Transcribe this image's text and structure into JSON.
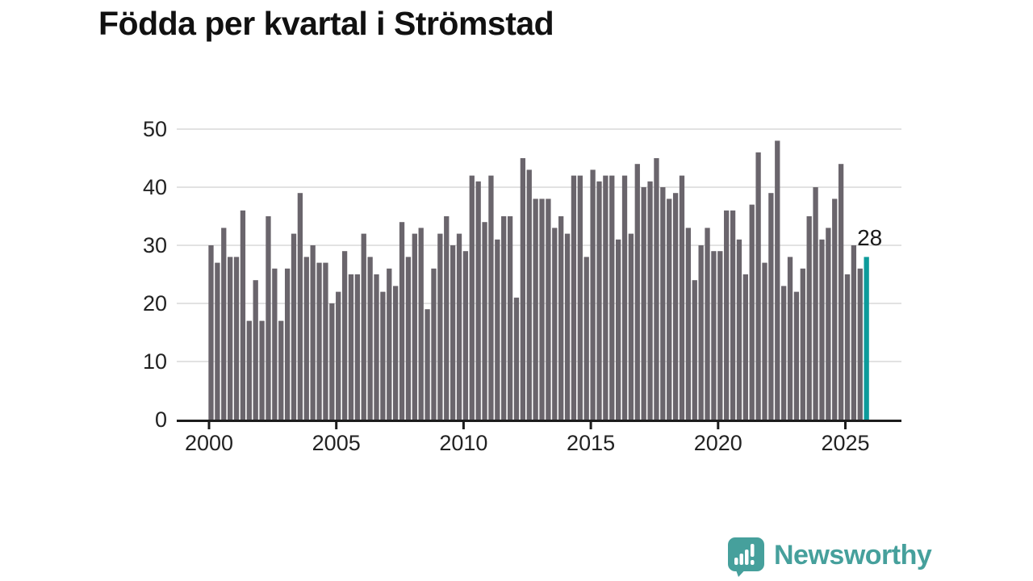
{
  "chart_data": {
    "type": "bar",
    "title": "Födda per kvartal i Strömstad",
    "frequency": "quarterly",
    "x_start": "2000-Q1",
    "x_end": "2025-Q4",
    "values_by_year": [
      {
        "year": 2000,
        "q": [
          30,
          27,
          33,
          28
        ]
      },
      {
        "year": 2001,
        "q": [
          28,
          36,
          17,
          24
        ]
      },
      {
        "year": 2002,
        "q": [
          17,
          35,
          26,
          17
        ]
      },
      {
        "year": 2003,
        "q": [
          26,
          32,
          39,
          28
        ]
      },
      {
        "year": 2004,
        "q": [
          30,
          27,
          27,
          20
        ]
      },
      {
        "year": 2005,
        "q": [
          22,
          29,
          25,
          25
        ]
      },
      {
        "year": 2006,
        "q": [
          32,
          28,
          25,
          22
        ]
      },
      {
        "year": 2007,
        "q": [
          26,
          23,
          34,
          28
        ]
      },
      {
        "year": 2008,
        "q": [
          32,
          33,
          19,
          26
        ]
      },
      {
        "year": 2009,
        "q": [
          32,
          35,
          30,
          32
        ]
      },
      {
        "year": 2010,
        "q": [
          29,
          42,
          41,
          34
        ]
      },
      {
        "year": 2011,
        "q": [
          42,
          31,
          35,
          35
        ]
      },
      {
        "year": 2012,
        "q": [
          21,
          45,
          43,
          38
        ]
      },
      {
        "year": 2013,
        "q": [
          38,
          38,
          33,
          35
        ]
      },
      {
        "year": 2014,
        "q": [
          32,
          42,
          42,
          28
        ]
      },
      {
        "year": 2015,
        "q": [
          43,
          41,
          42,
          42
        ]
      },
      {
        "year": 2016,
        "q": [
          31,
          42,
          32,
          44
        ]
      },
      {
        "year": 2017,
        "q": [
          40,
          41,
          45,
          40
        ]
      },
      {
        "year": 2018,
        "q": [
          38,
          39,
          42,
          33
        ]
      },
      {
        "year": 2019,
        "q": [
          24,
          30,
          33,
          29
        ]
      },
      {
        "year": 2020,
        "q": [
          29,
          36,
          36,
          31
        ]
      },
      {
        "year": 2021,
        "q": [
          25,
          37,
          46,
          27
        ]
      },
      {
        "year": 2022,
        "q": [
          39,
          48,
          23,
          28
        ]
      },
      {
        "year": 2023,
        "q": [
          22,
          26,
          35,
          40
        ]
      },
      {
        "year": 2024,
        "q": [
          31,
          33,
          38,
          44
        ]
      },
      {
        "year": 2025,
        "q": [
          25,
          30,
          26,
          28
        ]
      }
    ],
    "highlight_last": {
      "quarter": "2025-Q4",
      "value": 28,
      "label": "28"
    },
    "ylim": [
      0,
      50
    ],
    "yticks": [
      0,
      10,
      20,
      30,
      40,
      50
    ],
    "xticks": [
      2000,
      2005,
      2010,
      2015,
      2020,
      2025
    ],
    "grid": "horizontal",
    "legend": "none",
    "colors": {
      "bar": "#6A656C",
      "highlight": "#0D9B9B",
      "gridline": "#E2E2E2",
      "axis": "#1C1C1C",
      "tick_text": "#222222",
      "annotation_text": "#1A1A1A"
    }
  },
  "header": {
    "title": "Födda per kvartal i Strömstad"
  },
  "branding": {
    "name": "Newsworthy",
    "color": "#46A09C"
  }
}
